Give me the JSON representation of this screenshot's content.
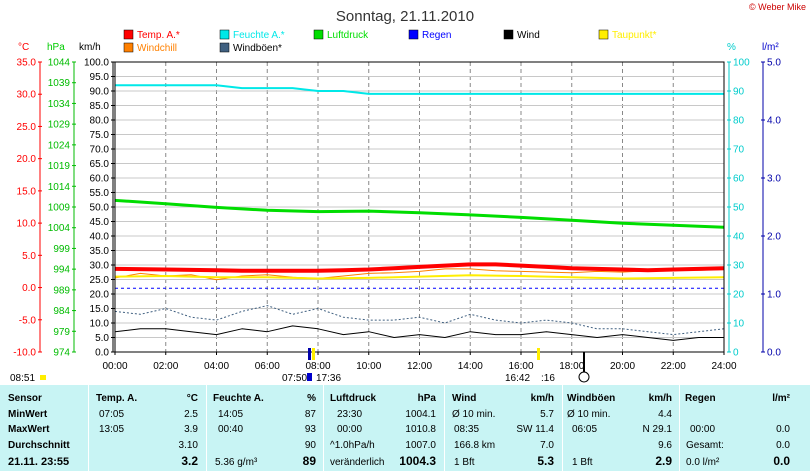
{
  "title": "Sonntag, 21.11.2010",
  "copyright": "© Weber Mike",
  "axis_units": {
    "temp": "°C",
    "pressure": "hPa",
    "speed": "km/h",
    "humidity": "%",
    "rain": "l/m²"
  },
  "legend": [
    {
      "label": "Temp. A.*",
      "color": "#ff0000"
    },
    {
      "label": "Feuchte A.*",
      "color": "#00e8e8"
    },
    {
      "label": "Luftdruck",
      "color": "#00dd00"
    },
    {
      "label": "Regen",
      "color": "#0000ff"
    },
    {
      "label": "Wind",
      "color": "#000000"
    },
    {
      "label": "Taupunkt*",
      "color": "#ffee00"
    },
    {
      "label": "Windchill",
      "color": "#ff8000"
    },
    {
      "label": "Windböen*",
      "color": "#406080"
    }
  ],
  "markers": {
    "sunrise": "07:50",
    "sunset": "16:42",
    "sunset_tag": ":16",
    "morning": "08:51",
    "noon_tag": "17:36"
  },
  "chart_data": {
    "type": "line",
    "title": "Sonntag, 21.11.2010",
    "x_ticks": [
      "00:00",
      "02:00",
      "04:00",
      "06:00",
      "08:00",
      "10:00",
      "12:00",
      "14:00",
      "16:00",
      "18:00",
      "20:00",
      "22:00",
      "24:00"
    ],
    "xlim": [
      0,
      24
    ],
    "axes": {
      "temp": {
        "unit": "°C",
        "ticks": [
          "35.0",
          "30.0",
          "25.0",
          "20.0",
          "15.0",
          "10.0",
          "5.0",
          "0.0",
          "-5.0",
          "-10.0"
        ],
        "ylim": [
          -10,
          35
        ]
      },
      "pressure": {
        "unit": "hPa",
        "ticks": [
          "1044",
          "1039",
          "1034",
          "1029",
          "1024",
          "1019",
          "1014",
          "1009",
          "1004",
          "999",
          "994",
          "989",
          "984",
          "979",
          "974"
        ],
        "ylim": [
          974,
          1044
        ]
      },
      "speed": {
        "unit": "km/h",
        "ticks": [
          "100.0",
          "95.0",
          "90.0",
          "85.0",
          "80.0",
          "75.0",
          "70.0",
          "65.0",
          "60.0",
          "55.0",
          "50.0",
          "45.0",
          "40.0",
          "35.0",
          "30.0",
          "25.0",
          "20.0",
          "15.0",
          "10.0",
          "5.0",
          "0.0"
        ],
        "ylim": [
          0,
          100
        ]
      },
      "humidity": {
        "unit": "%",
        "ticks": [
          "100",
          "90",
          "80",
          "70",
          "60",
          "50",
          "40",
          "30",
          "20",
          "10",
          "0"
        ],
        "ylim": [
          0,
          100
        ]
      },
      "rain": {
        "unit": "l/m²",
        "ticks": [
          "5.0",
          "4.0",
          "3.0",
          "2.0",
          "1.0",
          "0.0"
        ],
        "ylim": [
          0,
          5
        ]
      }
    },
    "grid": true,
    "series": [
      {
        "name": "Temp. A.*",
        "axis": "temp",
        "color": "#ff0000",
        "x": [
          0,
          2,
          4,
          5,
          6,
          7,
          8,
          9,
          10,
          11,
          12,
          13,
          14,
          15,
          16,
          17,
          18,
          19,
          20,
          21,
          22,
          23,
          24
        ],
        "y": [
          2.9,
          2.8,
          2.7,
          2.6,
          2.6,
          2.6,
          2.6,
          2.7,
          2.8,
          3.0,
          3.2,
          3.4,
          3.6,
          3.6,
          3.4,
          3.2,
          3.0,
          2.9,
          2.8,
          2.7,
          2.8,
          2.9,
          3.0
        ]
      },
      {
        "name": "Feuchte A.*",
        "axis": "humidity",
        "color": "#00e8e8",
        "x": [
          0,
          1,
          2,
          3,
          4,
          5,
          6,
          7,
          8,
          9,
          10,
          11,
          12,
          13,
          14,
          15,
          16,
          17,
          18,
          19,
          20,
          21,
          22,
          23,
          24
        ],
        "y": [
          92,
          92,
          92,
          92,
          92,
          91,
          91,
          91,
          90,
          90,
          89,
          89,
          89,
          89,
          89,
          89,
          89,
          89,
          89,
          89,
          89,
          89,
          89,
          89,
          89
        ]
      },
      {
        "name": "Luftdruck",
        "axis": "pressure",
        "color": "#00dd00",
        "x": [
          0,
          2,
          4,
          6,
          8,
          10,
          12,
          14,
          16,
          18,
          20,
          22,
          24
        ],
        "y": [
          1010.6,
          1009.8,
          1008.9,
          1008.2,
          1007.9,
          1008.0,
          1007.6,
          1007.1,
          1006.5,
          1005.8,
          1005.1,
          1004.6,
          1004.1
        ]
      },
      {
        "name": "Regen",
        "axis": "rain",
        "color": "#0000ff",
        "x": [
          0,
          24
        ],
        "y": [
          1.1,
          1.1
        ]
      },
      {
        "name": "Wind",
        "axis": "speed",
        "color": "#000000",
        "x": [
          0,
          1,
          2,
          3,
          4,
          5,
          6,
          7,
          8,
          9,
          10,
          11,
          12,
          13,
          14,
          15,
          16,
          17,
          18,
          19,
          20,
          21,
          22,
          23,
          24
        ],
        "y": [
          7,
          8,
          8,
          7,
          6,
          8,
          7,
          9,
          8,
          6,
          7,
          5,
          6,
          5,
          7,
          6,
          6,
          7,
          6,
          5,
          6,
          5,
          4,
          5,
          5
        ]
      },
      {
        "name": "Taupunkt*",
        "axis": "temp",
        "color": "#ffee00",
        "x": [
          0,
          2,
          4,
          6,
          8,
          10,
          12,
          14,
          16,
          18,
          20,
          22,
          24
        ],
        "y": [
          1.7,
          1.8,
          1.6,
          1.6,
          1.4,
          1.5,
          1.7,
          1.9,
          1.8,
          1.6,
          1.4,
          1.5,
          1.6
        ]
      },
      {
        "name": "Windchill",
        "axis": "temp",
        "color": "#ff8000",
        "x": [
          0,
          1,
          2,
          3,
          4,
          5,
          6,
          7,
          8,
          9,
          10,
          11,
          12,
          13,
          14,
          15,
          16,
          17,
          18,
          19,
          20,
          21,
          22,
          23,
          24
        ],
        "y": [
          1.5,
          2.2,
          1.8,
          2.0,
          1.2,
          1.8,
          2.0,
          1.6,
          1.4,
          1.8,
          2.2,
          2.3,
          2.5,
          2.9,
          2.9,
          2.6,
          2.5,
          2.4,
          2.3,
          2.5,
          2.4,
          2.6,
          2.7,
          2.7,
          2.8
        ]
      },
      {
        "name": "Windböen*",
        "axis": "speed",
        "color": "#406080",
        "x": [
          0,
          1,
          2,
          3,
          4,
          5,
          6,
          7,
          8,
          9,
          10,
          11,
          12,
          13,
          14,
          15,
          16,
          17,
          18,
          19,
          20,
          21,
          22,
          23,
          24
        ],
        "y": [
          14,
          13,
          15,
          12,
          11,
          14,
          16,
          13,
          15,
          12,
          11,
          11,
          12,
          10,
          13,
          11,
          10,
          11,
          10,
          8,
          8,
          7,
          6,
          7,
          8
        ]
      }
    ]
  },
  "table": {
    "sensor": {
      "header": "Sensor",
      "rows": [
        "MinWert",
        "MaxWert",
        "Durchschnitt"
      ],
      "date": "21.11. 23:55"
    },
    "temp": {
      "header": "Temp. A.",
      "unit": "°C",
      "min_time": "07:05",
      "min": "2.5",
      "max_time": "13:05",
      "max": "3.9",
      "avg": "3.10",
      "current": "3.2"
    },
    "feuchte": {
      "header": "Feuchte A.",
      "unit": "%",
      "min_time": "14:05",
      "min": "87",
      "max_time": "00:40",
      "max": "93",
      "avg": "90",
      "current_abs": "5.36 g/m³",
      "current": "89"
    },
    "druck": {
      "header": "Luftdruck",
      "unit": "hPa",
      "min_time": "23:30",
      "min": "1004.1",
      "max_time": "00:00",
      "max": "1010.8",
      "trend": "^1.0hPa/h",
      "avg": "1007.0",
      "state": "veränderlich",
      "current": "1004.3"
    },
    "wind": {
      "header": "Wind",
      "unit": "km/h",
      "avg_label": "Ø 10 min.",
      "avg": "5.7",
      "max_time": "08:35",
      "max_dir": "SW 11.4",
      "distance": "166.8 km",
      "dist_val": "7.0",
      "bft": "1 Bft",
      "current": "5.3"
    },
    "boeen": {
      "header": "Windböen",
      "unit": "km/h",
      "avg_label": "Ø 10 min.",
      "avg": "4.4",
      "max_time": "06:05",
      "max_dir": "N 29.1",
      "avg2": "9.6",
      "bft": "1 Bft",
      "current": "2.9"
    },
    "regen": {
      "header": "Regen",
      "unit": "l/m²",
      "time": "00:00",
      "val1": "0.0",
      "gesamt_label": "Gesamt:",
      "gesamt": "0.0",
      "day": "0.0 l/m²",
      "current": "0.0"
    }
  }
}
